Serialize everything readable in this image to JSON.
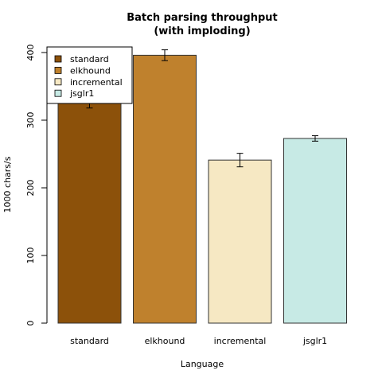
{
  "chart_data": {
    "type": "bar",
    "title_lines": [
      "Batch parsing throughput",
      "(with imploding)"
    ],
    "xlabel": "Language",
    "ylabel": "1000 chars/s",
    "categories": [
      "standard",
      "elkhound",
      "incremental",
      "jsglr1"
    ],
    "values": [
      327,
      396,
      241,
      273
    ],
    "error": [
      9,
      8,
      10,
      4
    ],
    "colors": [
      "#8c510a",
      "#bf812d",
      "#f6e8c3",
      "#c7eae5"
    ],
    "ylim": [
      0,
      400
    ],
    "yticks": [
      0,
      100,
      200,
      300,
      400
    ],
    "grid": false,
    "legend": {
      "placement": "top-left",
      "entries": [
        "standard",
        "elkhound",
        "incremental",
        "jsglr1"
      ]
    }
  }
}
